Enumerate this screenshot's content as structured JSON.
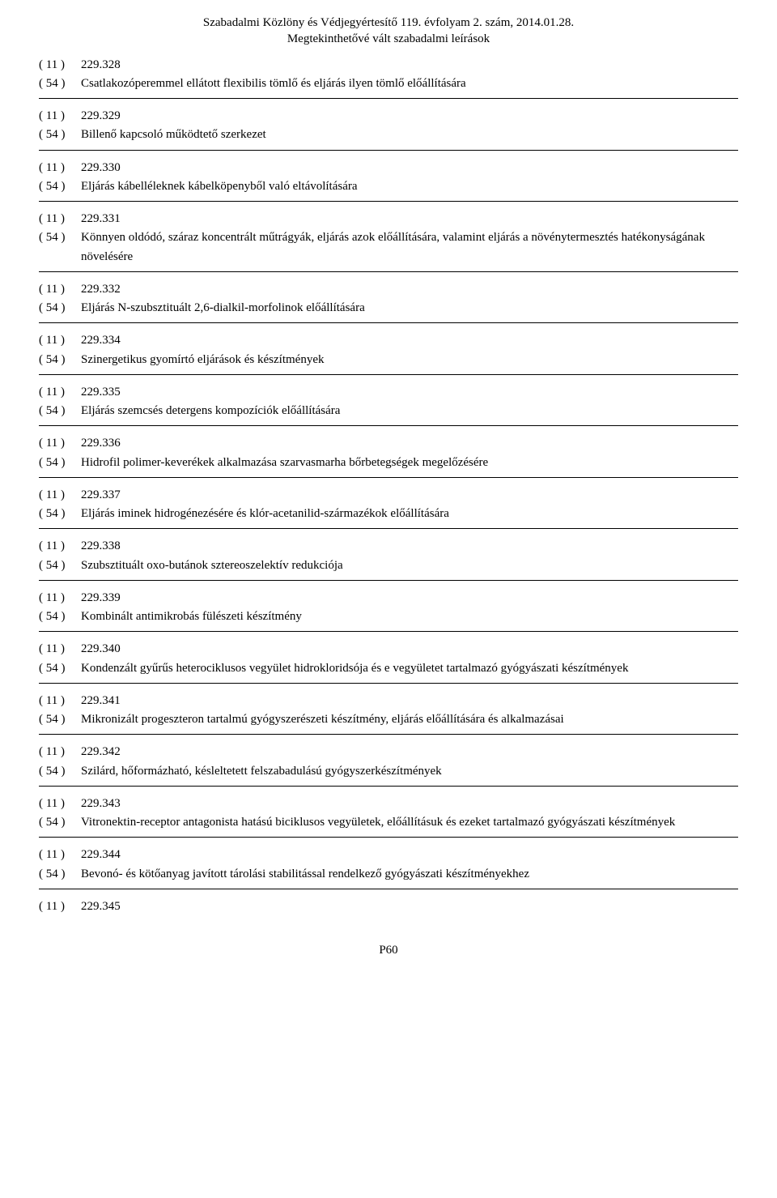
{
  "header": {
    "line1": "Szabadalmi Közlöny és Védjegyértesítő 119. évfolyam 2. szám, 2014.01.28.",
    "line2": "Megtekinthetővé vált szabadalmi leírások"
  },
  "code11_label": "( 11 )",
  "code54_label": "( 54 )",
  "entries": [
    {
      "num": "229.328",
      "title": "Csatlakozóperemmel ellátott flexibilis tömlő és eljárás ilyen tömlő előállítására",
      "rule": true
    },
    {
      "num": "229.329",
      "title": "Billenő kapcsoló működtető szerkezet",
      "rule": true
    },
    {
      "num": "229.330",
      "title": "Eljárás kábelléleknek kábelköpenyből való eltávolítására",
      "rule": true
    },
    {
      "num": "229.331",
      "title": "Könnyen oldódó, száraz koncentrált műtrágyák, eljárás azok előállítására, valamint eljárás a növénytermesztés hatékonyságának növelésére",
      "rule": true
    },
    {
      "num": "229.332",
      "title": "Eljárás N-szubsztituált 2,6-dialkil-morfolinok előállítására",
      "rule": true
    },
    {
      "num": "229.334",
      "title": "Szinergetikus gyomírtó eljárások és készítmények",
      "rule": true
    },
    {
      "num": "229.335",
      "title": "Eljárás szemcsés detergens kompozíciók előállítására",
      "rule": true
    },
    {
      "num": "229.336",
      "title": "Hidrofil polimer-keverékek alkalmazása szarvasmarha bőrbetegségek megelőzésére",
      "rule": true
    },
    {
      "num": "229.337",
      "title": "Eljárás iminek hidrogénezésére és klór-acetanilid-származékok előállítására",
      "rule": true
    },
    {
      "num": "229.338",
      "title": "Szubsztituált oxo-butánok sztereoszelektív redukciója",
      "rule": true
    },
    {
      "num": "229.339",
      "title": "Kombinált antimikrobás fülészeti készítmény",
      "rule": true
    },
    {
      "num": "229.340",
      "title": "Kondenzált gyűrűs heterociklusos vegyület hidrokloridsója és e vegyületet tartalmazó gyógyászati készítmények",
      "rule": true
    },
    {
      "num": "229.341",
      "title": "Mikronizált progeszteron tartalmú gyógyszerészeti készítmény, eljárás előállítására és alkalmazásai",
      "rule": true
    },
    {
      "num": "229.342",
      "title": "Szilárd, hőformázható, késleltetett felszabadulású gyógyszerkészítmények",
      "rule": true
    },
    {
      "num": "229.343",
      "title": "Vitronektin-receptor antagonista hatású biciklusos vegyületek, előállításuk és ezeket tartalmazó gyógyászati készítmények",
      "rule": true
    },
    {
      "num": "229.344",
      "title": "Bevonó- és kötőanyag javított tárolási stabilitással rendelkező gyógyászati készítményekhez",
      "rule": true
    },
    {
      "num": "229.345",
      "title": "",
      "rule": false
    }
  ],
  "footer": "P60"
}
